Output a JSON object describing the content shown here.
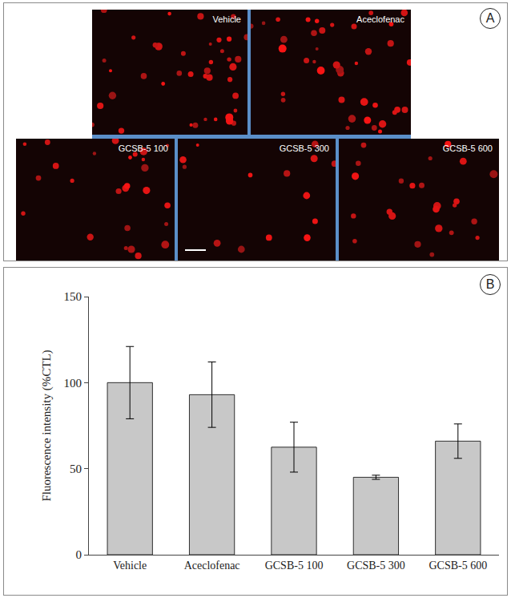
{
  "panels": [
    {
      "label": "A",
      "image_captions": [
        "Vehicle",
        "Aceclofenac",
        "GCSB-5 100",
        "GCSB-5 300",
        "GCSB-5 600"
      ]
    },
    {
      "label": "B"
    }
  ],
  "chart_data": {
    "type": "bar",
    "categories": [
      "Vehicle",
      "Aceclofenac",
      "GCSB-5 100",
      "GCSB-5 300",
      "GCSB-5 600"
    ],
    "values": [
      100,
      93,
      62.5,
      45,
      66
    ],
    "errors": [
      21,
      19,
      14.5,
      1.2,
      10
    ],
    "color": "#c8c8c8",
    "ylabel": "Fluorescence intensity (%CTL)",
    "ylim": [
      0,
      150
    ],
    "yticks": [
      0,
      50,
      100,
      150
    ],
    "grid": false
  }
}
